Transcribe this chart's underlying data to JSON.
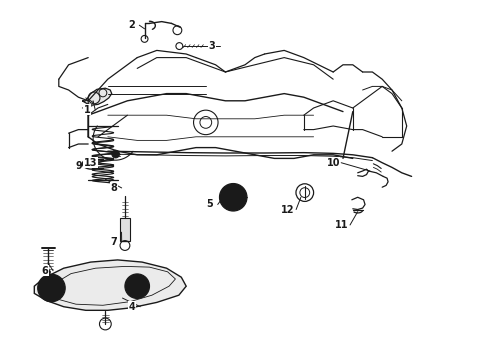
{
  "background_color": "#ffffff",
  "line_color": "#1a1a1a",
  "fig_width": 4.9,
  "fig_height": 3.6,
  "dpi": 100,
  "label_positions": {
    "1": [
      0.185,
      0.695,
      0.215,
      0.72
    ],
    "2": [
      0.27,
      0.93,
      0.3,
      0.935
    ],
    "3": [
      0.43,
      0.872,
      0.405,
      0.87
    ],
    "4": [
      0.27,
      0.148,
      0.255,
      0.175
    ],
    "5": [
      0.43,
      0.43,
      0.455,
      0.445
    ],
    "6": [
      0.098,
      0.248,
      0.098,
      0.27
    ],
    "7": [
      0.24,
      0.325,
      0.252,
      0.35
    ],
    "8": [
      0.238,
      0.478,
      0.22,
      0.505
    ],
    "9": [
      0.168,
      0.54,
      0.188,
      0.545
    ],
    "10": [
      0.682,
      0.548,
      0.7,
      0.53
    ],
    "11": [
      0.698,
      0.38,
      0.706,
      0.405
    ],
    "12": [
      0.59,
      0.42,
      0.608,
      0.445
    ],
    "13": [
      0.192,
      0.548,
      0.218,
      0.558
    ]
  }
}
